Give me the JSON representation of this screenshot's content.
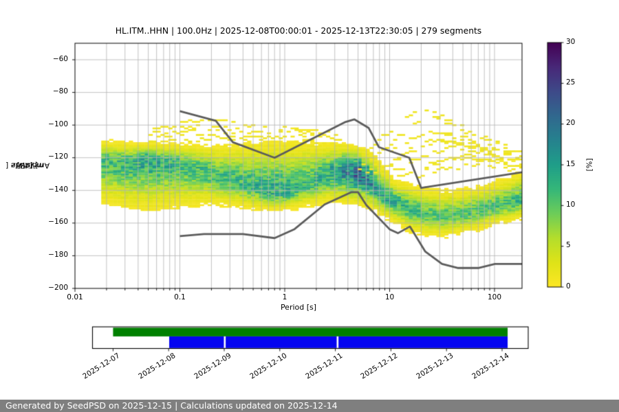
{
  "footer": {
    "text": "Generated by SeedPSD on 2025-12-15 | Calculations updated on 2025-12-14",
    "bg_color": "#7f7f7f",
    "fg_color": "#ffffff"
  },
  "chart_data": {
    "type": "heatmap",
    "title": "HL.ITM..HHN | 100.0Hz | 2025-12-08T00:00:01 - 2025-12-13T22:30:05 | 279 segments",
    "xlabel": "Period [s]",
    "ylabel_prefix": "Amplitude [",
    "ylabel_math": "m²/s⁴/Hz",
    "ylabel_suffix": "] [dB]",
    "xscale": "log",
    "xlim": [
      0.01,
      183
    ],
    "ylim": [
      -200,
      -50
    ],
    "grid_color": "#b3b3b3",
    "xticks": [
      {
        "v": 0.01,
        "label": "0.01"
      },
      {
        "v": 0.1,
        "label": "0.1"
      },
      {
        "v": 1,
        "label": "1"
      },
      {
        "v": 10,
        "label": "10"
      },
      {
        "v": 100,
        "label": "100"
      }
    ],
    "yticks": [
      {
        "v": -60,
        "label": "−60"
      },
      {
        "v": -80,
        "label": "−80"
      },
      {
        "v": -100,
        "label": "−100"
      },
      {
        "v": -120,
        "label": "−120"
      },
      {
        "v": -140,
        "label": "−140"
      },
      {
        "v": -160,
        "label": "−160"
      },
      {
        "v": -180,
        "label": "−180"
      },
      {
        "v": -200,
        "label": "−200"
      }
    ],
    "colorbar": {
      "label": "[%]",
      "min": 0,
      "max": 30,
      "colormap": "viridis_r",
      "ticks": [
        {
          "v": 0,
          "label": "0"
        },
        {
          "v": 5,
          "label": "5"
        },
        {
          "v": 10,
          "label": "10"
        },
        {
          "v": 15,
          "label": "15"
        },
        {
          "v": 20,
          "label": "20"
        },
        {
          "v": 25,
          "label": "25"
        },
        {
          "v": 30,
          "label": "30"
        }
      ]
    },
    "histogram": {
      "period_bins_per_decade": 26.6,
      "db_bin_db": 1,
      "band_columns": "[period_s, top_db, mode_db, bottom_db, peak_percent]",
      "band": [
        [
          0.0186,
          -110.5,
          -122,
          -146,
          11
        ],
        [
          0.03,
          -112,
          -123,
          -148,
          12
        ],
        [
          0.05,
          -112,
          -121,
          -150,
          13
        ],
        [
          0.08,
          -112.5,
          -123,
          -149,
          12
        ],
        [
          0.12,
          -113,
          -125,
          -148,
          11
        ],
        [
          0.2,
          -114,
          -129,
          -147,
          11
        ],
        [
          0.3,
          -114,
          -133,
          -148,
          11
        ],
        [
          0.5,
          -113,
          -137,
          -150,
          12
        ],
        [
          0.8,
          -112,
          -141,
          -151,
          13
        ],
        [
          1.2,
          -112,
          -140,
          -150,
          12
        ],
        [
          1.8,
          -112,
          -135,
          -148,
          11
        ],
        [
          2.6,
          -113,
          -129.5,
          -146,
          13
        ],
        [
          3.6,
          -113,
          -128,
          -145.5,
          16
        ],
        [
          5,
          -115,
          -128.5,
          -147,
          20
        ],
        [
          6.5,
          -118,
          -134,
          -149,
          17
        ],
        [
          8,
          -124,
          -143,
          -153,
          13
        ],
        [
          11,
          -135,
          -146.5,
          -158,
          13
        ],
        [
          16,
          -138,
          -151.5,
          -164,
          11
        ],
        [
          22,
          -140,
          -154,
          -166.5,
          10
        ],
        [
          32,
          -141,
          -156,
          -167,
          10
        ],
        [
          48,
          -141,
          -154.5,
          -165,
          10
        ],
        [
          70,
          -139,
          -152,
          -163,
          10
        ],
        [
          100,
          -136,
          -150,
          -160,
          10.5
        ],
        [
          140,
          -133,
          -147.5,
          -158,
          11
        ],
        [
          183,
          -130,
          -145.5,
          -156,
          11
        ]
      ]
    },
    "streaks": [
      {
        "pct": 0.9,
        "pts": [
          [
            0.055,
            -102
          ],
          [
            0.3,
            -101
          ],
          [
            1.2,
            -102
          ],
          [
            3.2,
            -105
          ]
        ]
      },
      {
        "pct": 1.0,
        "pts": [
          [
            0.05,
            -104.5
          ],
          [
            0.15,
            -103.5
          ],
          [
            0.6,
            -104.5
          ],
          [
            1.6,
            -104
          ],
          [
            3,
            -107
          ]
        ]
      },
      {
        "pct": 1.1,
        "pts": [
          [
            0.06,
            -107
          ],
          [
            0.25,
            -106
          ],
          [
            0.8,
            -107.5
          ],
          [
            2,
            -107
          ],
          [
            3.8,
            -110
          ]
        ]
      },
      {
        "pct": 1.2,
        "pts": [
          [
            0.045,
            -110
          ],
          [
            0.3,
            -109
          ],
          [
            1,
            -110.5
          ],
          [
            2.6,
            -110
          ],
          [
            4.5,
            -113
          ]
        ]
      },
      {
        "pct": 1.0,
        "pts": [
          [
            0.09,
            -98
          ],
          [
            0.22,
            -96.5
          ],
          [
            0.35,
            -97.5
          ]
        ]
      },
      {
        "pct": 1.2,
        "pts": [
          [
            4.5,
            -124
          ],
          [
            8,
            -109
          ],
          [
            14,
            -96
          ],
          [
            21,
            -90.5
          ],
          [
            32,
            -95
          ],
          [
            60,
            -104.5
          ],
          [
            110,
            -111
          ],
          [
            183,
            -116
          ]
        ]
      },
      {
        "pct": 1.0,
        "pts": [
          [
            5,
            -127
          ],
          [
            10,
            -112
          ],
          [
            18,
            -99
          ],
          [
            27,
            -96
          ],
          [
            50,
            -103
          ],
          [
            100,
            -110.5
          ],
          [
            183,
            -119
          ]
        ]
      },
      {
        "pct": 1.1,
        "pts": [
          [
            6,
            -129
          ],
          [
            12,
            -113
          ],
          [
            24,
            -103
          ],
          [
            45,
            -108
          ],
          [
            90,
            -114.5
          ],
          [
            170,
            -121
          ]
        ]
      },
      {
        "pct": 1.0,
        "pts": [
          [
            7,
            -131
          ],
          [
            15,
            -117
          ],
          [
            30,
            -109
          ],
          [
            60,
            -113
          ],
          [
            120,
            -119.5
          ],
          [
            183,
            -124
          ]
        ]
      },
      {
        "pct": 1.0,
        "pts": [
          [
            8,
            -133
          ],
          [
            18,
            -121
          ],
          [
            38,
            -113.5
          ],
          [
            75,
            -117
          ],
          [
            150,
            -123.5
          ]
        ]
      },
      {
        "pct": 1.1,
        "pts": [
          [
            10,
            -135
          ],
          [
            26,
            -123
          ],
          [
            55,
            -118.5
          ],
          [
            105,
            -121.5
          ],
          [
            183,
            -127
          ]
        ]
      },
      {
        "pct": 0.9,
        "pts": [
          [
            13,
            -136
          ],
          [
            32,
            -127
          ],
          [
            75,
            -123.5
          ],
          [
            160,
            -127.5
          ]
        ]
      },
      {
        "pct": 1.0,
        "pts": [
          [
            9,
            -130
          ],
          [
            20,
            -106
          ],
          [
            36,
            -105
          ],
          [
            70,
            -110.5
          ],
          [
            130,
            -117
          ],
          [
            183,
            -121
          ]
        ]
      },
      {
        "pct": 0.9,
        "pts": [
          [
            16,
            -132
          ],
          [
            36,
            -120
          ],
          [
            80,
            -121
          ],
          [
            183,
            -126
          ]
        ]
      },
      {
        "pct": 1.1,
        "pts": [
          [
            11,
            -134
          ],
          [
            22,
            -110
          ],
          [
            40,
            -110
          ],
          [
            90,
            -116
          ],
          [
            183,
            -122
          ]
        ]
      }
    ],
    "noise_models": {
      "color": "#5c5c5c",
      "nlnm": [
        [
          0.1,
          -168
        ],
        [
          0.17,
          -166.7
        ],
        [
          0.4,
          -166.7
        ],
        [
          0.8,
          -169.2
        ],
        [
          1.24,
          -163.7
        ],
        [
          2.4,
          -148.6
        ],
        [
          4.3,
          -141.1
        ],
        [
          5,
          -141.1
        ],
        [
          6,
          -149
        ],
        [
          10,
          -163.8
        ],
        [
          12,
          -166.2
        ],
        [
          15.6,
          -162.1
        ],
        [
          21.9,
          -177.5
        ],
        [
          31.6,
          -185
        ],
        [
          45,
          -187.5
        ],
        [
          70,
          -187.5
        ],
        [
          101,
          -185
        ],
        [
          183,
          -185
        ]
      ],
      "nhnm": [
        [
          0.1,
          -91.5
        ],
        [
          0.22,
          -97.4
        ],
        [
          0.32,
          -110.5
        ],
        [
          0.8,
          -120
        ],
        [
          3.8,
          -98.1
        ],
        [
          4.6,
          -96.5
        ],
        [
          6.3,
          -101.7
        ],
        [
          7.9,
          -113.5
        ],
        [
          15.4,
          -120
        ],
        [
          20,
          -138.5
        ],
        [
          183,
          -128.9
        ]
      ]
    }
  },
  "timeline": {
    "dates": [
      "2025-12-07",
      "2025-12-08",
      "2025-12-09",
      "2025-12-10",
      "2025-12-11",
      "2025-12-12",
      "2025-12-13",
      "2025-12-14"
    ],
    "bars": [
      {
        "name": "data-availability",
        "color": "#008000",
        "start_day": 0.0,
        "end_day": 7.1
      },
      {
        "name": "psd-coverage",
        "color": "#0505f0",
        "start_day": 1.01,
        "end_day": 7.1
      }
    ],
    "gap_days": [
      2.01,
      4.04
    ]
  }
}
